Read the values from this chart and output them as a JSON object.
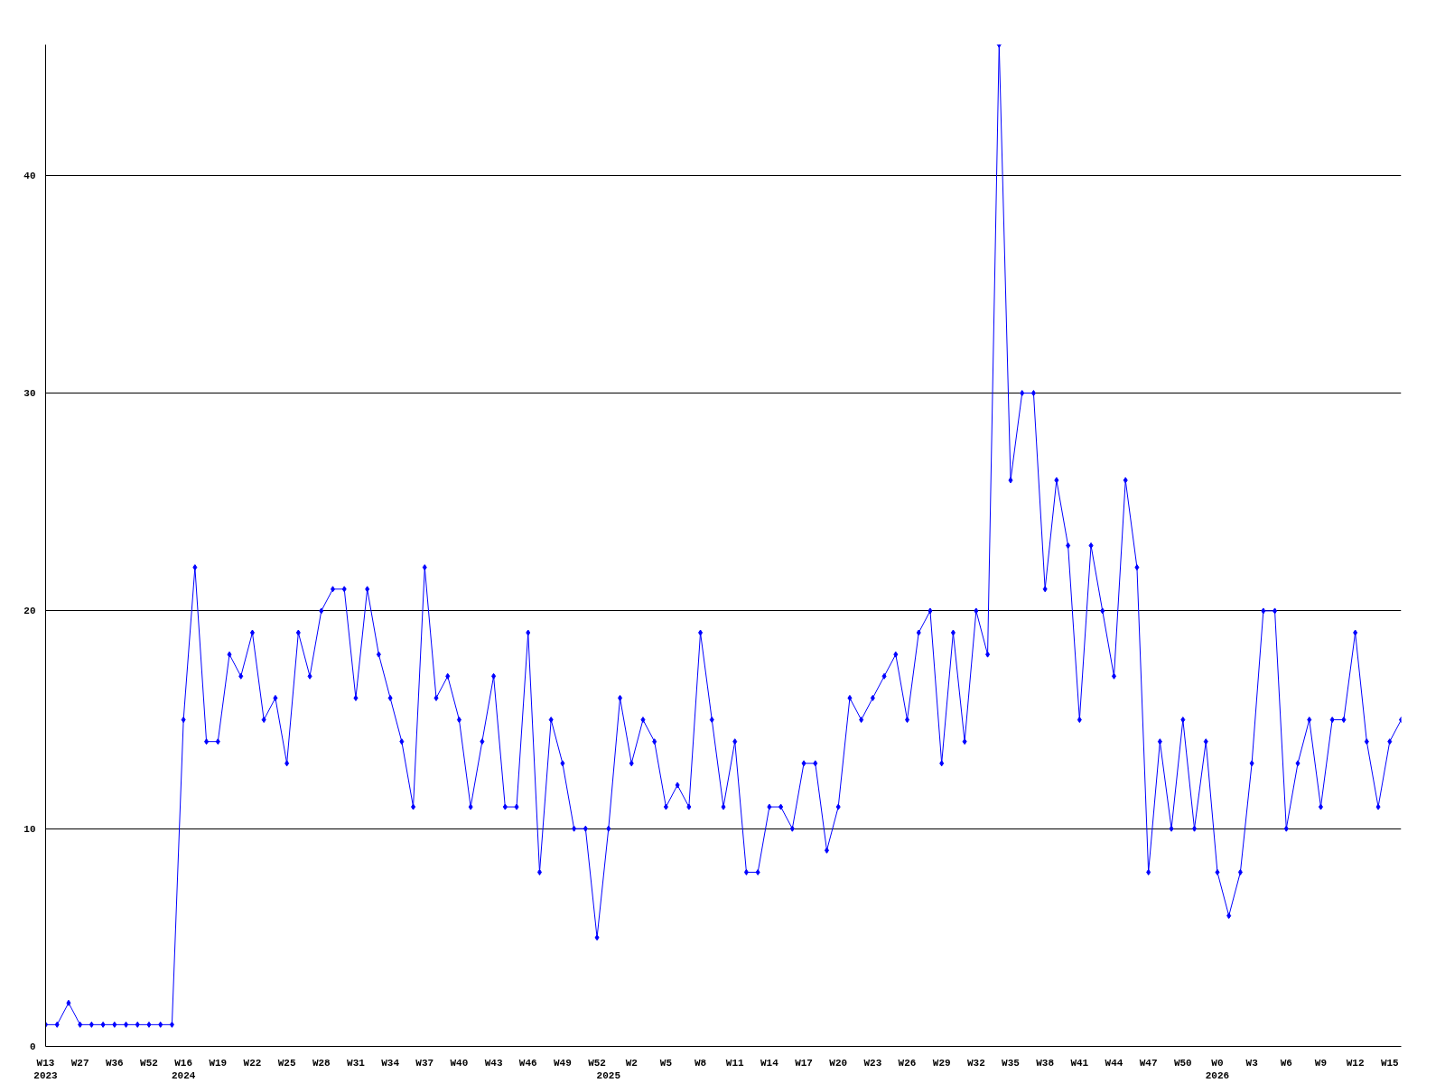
{
  "chart_data": {
    "type": "line",
    "categories": [
      "W13\n2023",
      null,
      null,
      "W27",
      null,
      null,
      "W36",
      null,
      null,
      "W52",
      null,
      null,
      "W16\n2024",
      null,
      null,
      "W19",
      null,
      null,
      "W22",
      null,
      null,
      "W25",
      null,
      null,
      "W28",
      null,
      null,
      "W31",
      null,
      null,
      "W34",
      null,
      null,
      "W37",
      null,
      null,
      "W40",
      null,
      null,
      "W43",
      null,
      null,
      "W46",
      null,
      null,
      "W49",
      null,
      null,
      "W52",
      "\n2025",
      null,
      "W2",
      null,
      null,
      "W5",
      null,
      null,
      "W8",
      null,
      null,
      "W11",
      null,
      null,
      "W14",
      null,
      null,
      "W17",
      null,
      null,
      "W20",
      null,
      null,
      "W23",
      null,
      null,
      "W26",
      null,
      null,
      "W29",
      null,
      null,
      "W32",
      null,
      null,
      "W35",
      null,
      null,
      "W38",
      null,
      null,
      "W41",
      null,
      null,
      "W44",
      null,
      null,
      "W47",
      null,
      null,
      "W50",
      null,
      null,
      "W0\n2026",
      null,
      null,
      "W3",
      null,
      null,
      "W6",
      null,
      null,
      "W9",
      null,
      null,
      "W12",
      null,
      null,
      "W15",
      null
    ],
    "series": [
      {
        "color": "#0000ff",
        "values": [
          1,
          1,
          2,
          1,
          1,
          1,
          1,
          1,
          1,
          1,
          1,
          1,
          15,
          22,
          14,
          14,
          18,
          17,
          19,
          15,
          16,
          13,
          19,
          17,
          20,
          21,
          21,
          16,
          21,
          18,
          16,
          14,
          11,
          22,
          16,
          17,
          15,
          11,
          14,
          17,
          11,
          11,
          19,
          8,
          15,
          13,
          10,
          10,
          5,
          10,
          16,
          13,
          15,
          14,
          11,
          12,
          11,
          19,
          15,
          11,
          14,
          8,
          8,
          11,
          11,
          10,
          13,
          13,
          9,
          11,
          16,
          15,
          16,
          17,
          18,
          15,
          19,
          20,
          13,
          19,
          14,
          20,
          18,
          46,
          26,
          30,
          30,
          21,
          26,
          23,
          15,
          23,
          20,
          17,
          26,
          22,
          8,
          14,
          10,
          15,
          10,
          14,
          8,
          6,
          8,
          13,
          20,
          20,
          10,
          13,
          15,
          11,
          15,
          15,
          19,
          14,
          11,
          14,
          15
        ]
      }
    ],
    "ylim": [
      0,
      46
    ],
    "yticks": [
      0,
      10,
      20,
      30,
      40
    ],
    "grid": "y",
    "marker": "diamond",
    "line_style": "solid"
  }
}
